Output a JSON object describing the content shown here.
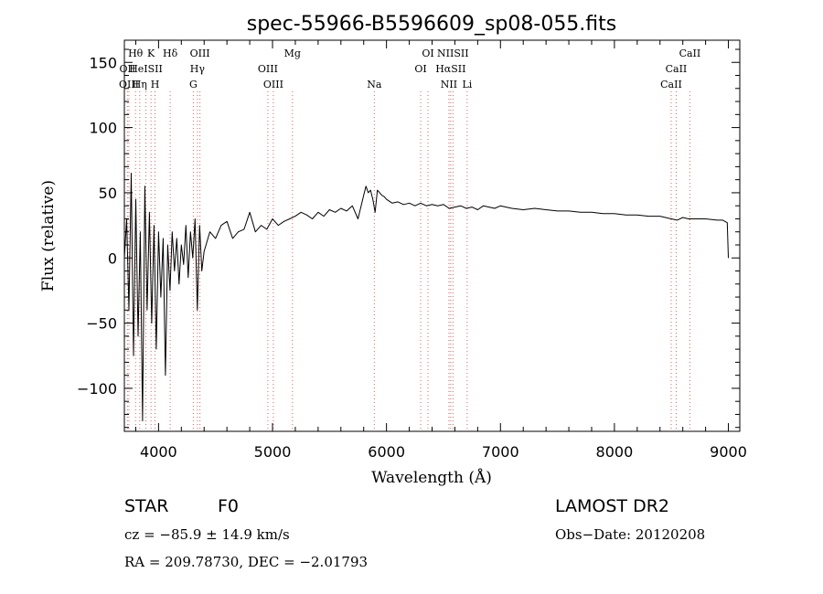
{
  "chart_data": {
    "type": "line",
    "title": "spec-55966-B5596609_sp08-055.fits",
    "xlabel": "Wavelength (Å)",
    "ylabel": "Flux (relative)",
    "xlim": [
      3700,
      9100
    ],
    "ylim": [
      -133,
      167
    ],
    "xticks": [
      4000,
      5000,
      6000,
      7000,
      8000,
      9000
    ],
    "yticks": [
      -100,
      -50,
      0,
      50,
      100,
      150
    ],
    "grid": false,
    "legend": "none",
    "series": [
      {
        "x": [
          3700,
          3720,
          3740,
          3760,
          3780,
          3800,
          3820,
          3840,
          3860,
          3880,
          3900,
          3920,
          3940,
          3960,
          3980,
          4000,
          4020,
          4040,
          4060,
          4080,
          4100,
          4120,
          4140,
          4160,
          4180,
          4200,
          4220,
          4240,
          4260,
          4280,
          4300,
          4320,
          4340,
          4360,
          4380,
          4400,
          4450,
          4500,
          4550,
          4600,
          4650,
          4700,
          4750,
          4800,
          4850,
          4900,
          4950,
          5000,
          5050,
          5100,
          5150,
          5200,
          5250,
          5300,
          5350,
          5400,
          5450,
          5500,
          5550,
          5600,
          5650,
          5700,
          5750,
          5800,
          5820,
          5840,
          5860,
          5880,
          5900,
          5920,
          5940,
          5960,
          5980,
          6000,
          6050,
          6100,
          6150,
          6200,
          6250,
          6300,
          6350,
          6400,
          6450,
          6500,
          6550,
          6600,
          6650,
          6700,
          6750,
          6800,
          6850,
          6900,
          6950,
          7000,
          7100,
          7200,
          7300,
          7400,
          7500,
          7600,
          7700,
          7800,
          7900,
          8000,
          8100,
          8200,
          8300,
          8400,
          8500,
          8550,
          8600,
          8650,
          8700,
          8800,
          8900,
          8950,
          8990,
          9000
        ],
        "y": [
          0,
          30,
          -40,
          65,
          -75,
          45,
          -60,
          20,
          -125,
          55,
          -40,
          35,
          -50,
          25,
          -70,
          20,
          -30,
          15,
          -90,
          10,
          -25,
          20,
          -10,
          15,
          -20,
          10,
          -5,
          25,
          -15,
          20,
          0,
          30,
          -40,
          25,
          -10,
          5,
          20,
          15,
          25,
          28,
          15,
          20,
          22,
          35,
          20,
          25,
          22,
          30,
          25,
          28,
          30,
          32,
          35,
          33,
          30,
          35,
          32,
          37,
          35,
          38,
          36,
          40,
          30,
          48,
          55,
          50,
          52,
          45,
          35,
          52,
          50,
          48,
          47,
          45,
          42,
          43,
          41,
          42,
          40,
          42,
          40,
          41,
          40,
          41,
          38,
          39,
          40,
          38,
          39,
          37,
          40,
          39,
          38,
          40,
          38,
          37,
          38,
          37,
          36,
          36,
          35,
          35,
          34,
          34,
          33,
          33,
          32,
          32,
          30,
          29,
          31,
          30,
          30,
          30,
          29,
          29,
          27,
          0
        ]
      }
    ],
    "line_markers": [
      {
        "label": "Hθ",
        "wavelength": 3798,
        "row": 1
      },
      {
        "label": "K",
        "wavelength": 3934,
        "row": 1
      },
      {
        "label": "Hδ",
        "wavelength": 4102,
        "row": 1
      },
      {
        "label": "OIII",
        "wavelength": 4363,
        "row": 1
      },
      {
        "label": "Mg",
        "wavelength": 5175,
        "row": 1
      },
      {
        "label": "OI",
        "wavelength": 6364,
        "row": 1
      },
      {
        "label": "NIISII",
        "wavelength": 6583,
        "row": 1
      },
      {
        "label": "CaII",
        "wavelength": 8662,
        "row": 1
      },
      {
        "label": "OII",
        "wavelength": 3727,
        "row": 2
      },
      {
        "label": "HeISII",
        "wavelength": 3889,
        "row": 2
      },
      {
        "label": "Hγ",
        "wavelength": 4341,
        "row": 2
      },
      {
        "label": "OIII",
        "wavelength": 4959,
        "row": 2
      },
      {
        "label": "OI",
        "wavelength": 6300,
        "row": 2
      },
      {
        "label": "HαSII",
        "wavelength": 6563,
        "row": 2
      },
      {
        "label": "CaII",
        "wavelength": 8542,
        "row": 2
      },
      {
        "label": "OIII",
        "wavelength": 3740,
        "row": 3
      },
      {
        "label": "Hη",
        "wavelength": 3835,
        "row": 3
      },
      {
        "label": "H",
        "wavelength": 3969,
        "row": 3
      },
      {
        "label": "G",
        "wavelength": 4305,
        "row": 3
      },
      {
        "label": "OIII",
        "wavelength": 5007,
        "row": 3
      },
      {
        "label": "Na",
        "wavelength": 5893,
        "row": 3
      },
      {
        "label": "NII",
        "wavelength": 6548,
        "row": 3
      },
      {
        "label": "Li",
        "wavelength": 6708,
        "row": 3
      },
      {
        "label": "CaII",
        "wavelength": 8498,
        "row": 3
      }
    ],
    "marker_color": "#e06060"
  },
  "info": {
    "class": "STAR",
    "subclass": "F0",
    "survey": "LAMOST DR2",
    "cz": "cz = −85.9 ± 14.9 km/s",
    "obs_date": "Obs−Date: 20120208",
    "radec": "RA = 209.78730, DEC =  −2.01793"
  }
}
